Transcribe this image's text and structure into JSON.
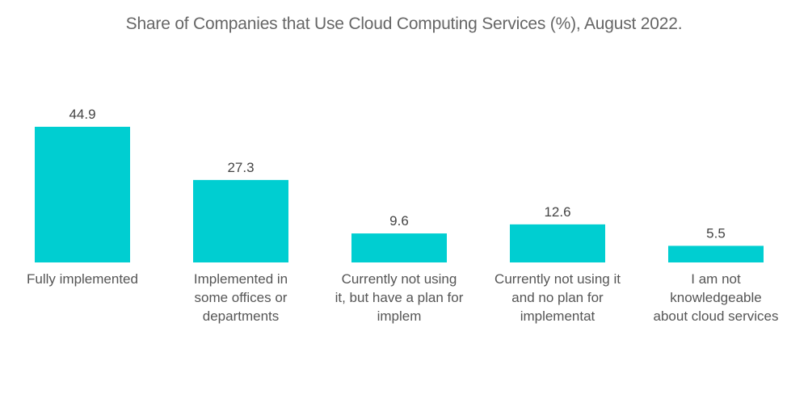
{
  "chart_data": {
    "type": "bar",
    "title": "Share of Companies that Use Cloud Computing Services (%), August 2022.",
    "categories": [
      [
        "Fully implemented"
      ],
      [
        "Implemented in",
        "some offices or",
        "departments"
      ],
      [
        "Currently not using",
        "it, but have a plan for",
        "implem"
      ],
      [
        "Currently not using it",
        "and no plan for",
        "implementat"
      ],
      [
        "I am not",
        "knowledgeable",
        "about cloud services"
      ]
    ],
    "values": [
      44.9,
      27.3,
      9.6,
      12.6,
      5.5
    ],
    "value_labels": [
      "44.9",
      "27.3",
      "9.6",
      "12.6",
      "5.5"
    ],
    "xlabel": "",
    "ylabel": "",
    "ylim": [
      0,
      44.9
    ],
    "grid": false,
    "legend": "none",
    "bar_color": "#00CED1"
  }
}
